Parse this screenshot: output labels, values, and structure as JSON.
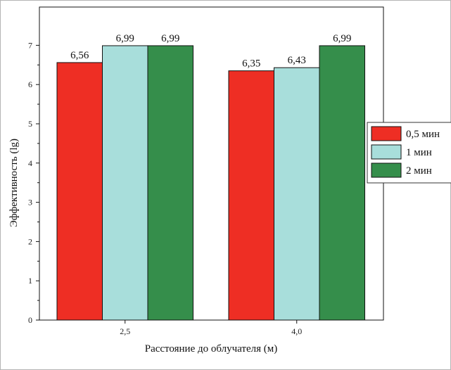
{
  "chart_data": {
    "type": "bar",
    "categories": [
      "2,5",
      "4,0"
    ],
    "series": [
      {
        "name": "0,5 мин",
        "values": [
          6.56,
          6.35
        ],
        "labels": [
          "6,56",
          "6,35"
        ],
        "color": "#ee2e24"
      },
      {
        "name": "1 мин",
        "values": [
          6.99,
          6.43
        ],
        "labels": [
          "6,99",
          "6,43"
        ],
        "color": "#a8dedb"
      },
      {
        "name": "2 мин",
        "values": [
          6.99,
          6.99
        ],
        "labels": [
          "6,99",
          "6,99"
        ],
        "color": "#358e4b"
      }
    ],
    "xlabel": "Расстояние до облучателя (м)",
    "ylabel": "Эффективность (lg)",
    "ylim": [
      0,
      7
    ],
    "yticks": [
      "0",
      "1",
      "2",
      "3",
      "4",
      "5",
      "6",
      "7"
    ],
    "legend_position": "right"
  }
}
